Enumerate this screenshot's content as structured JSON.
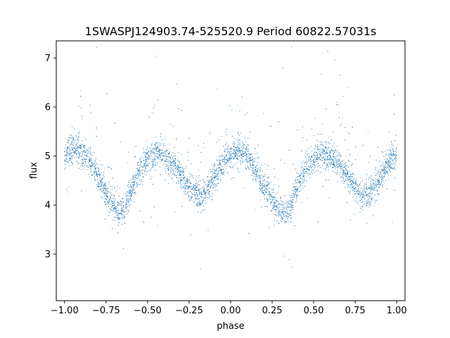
{
  "chart_data": {
    "type": "scatter",
    "title": "1SWASPJ124903.74-525520.9 Period 60822.57031s",
    "xlabel": "phase",
    "ylabel": "flux",
    "xlim": [
      -1.05,
      1.05
    ],
    "ylim": [
      2.05,
      7.35
    ],
    "xticks": [
      -1.0,
      -0.75,
      -0.5,
      -0.25,
      0.0,
      0.25,
      0.5,
      0.75,
      1.0
    ],
    "xtick_labels": [
      "−1.00",
      "−0.75",
      "−0.50",
      "−0.25",
      "0.00",
      "0.25",
      "0.50",
      "0.75",
      "1.00"
    ],
    "yticks": [
      3,
      4,
      5,
      6,
      7
    ],
    "ytick_labels": [
      "3",
      "4",
      "5",
      "6",
      "7"
    ],
    "grid": false,
    "marker_color": "#1f77b4",
    "series": [
      {
        "description_points": "phase-folded light curve profile (mean flux vs phase), repeated over two cycles",
        "x": [
          -1.0,
          -0.95,
          -0.9,
          -0.85,
          -0.8,
          -0.75,
          -0.7,
          -0.67,
          -0.64,
          -0.6,
          -0.55,
          -0.5,
          -0.45,
          -0.4,
          -0.35,
          -0.3,
          -0.25,
          -0.2,
          -0.17,
          -0.15,
          -0.1,
          -0.05,
          0.0,
          0.05,
          0.1,
          0.15,
          0.2,
          0.25,
          0.3,
          0.33,
          0.36,
          0.4,
          0.45,
          0.5,
          0.55,
          0.6,
          0.65,
          0.7,
          0.75,
          0.8,
          0.83,
          0.85,
          0.9,
          0.95,
          1.0
        ],
        "y": [
          5.0,
          5.15,
          5.1,
          4.9,
          4.6,
          4.25,
          3.95,
          3.85,
          3.95,
          4.3,
          4.7,
          4.95,
          5.05,
          5.0,
          4.85,
          4.6,
          4.35,
          4.25,
          4.2,
          4.25,
          4.55,
          4.85,
          5.05,
          5.1,
          5.0,
          4.7,
          4.35,
          4.1,
          3.9,
          3.85,
          3.95,
          4.35,
          4.75,
          4.95,
          5.05,
          5.0,
          4.85,
          4.6,
          4.35,
          4.25,
          4.2,
          4.25,
          4.55,
          4.85,
          5.0
        ]
      }
    ]
  }
}
